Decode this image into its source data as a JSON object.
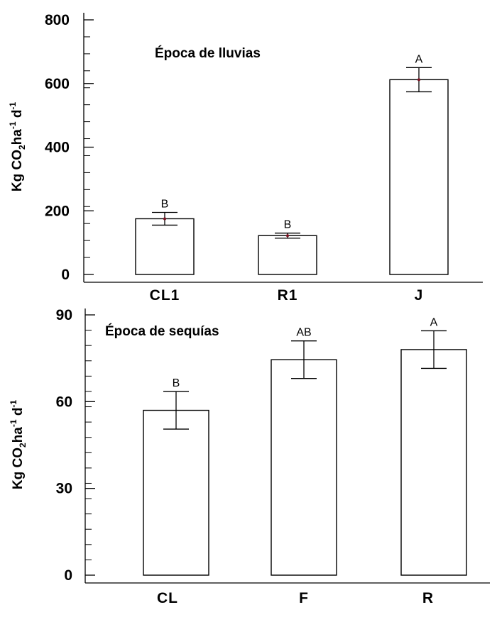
{
  "chart_data": [
    {
      "type": "bar",
      "title": "Época de lluvias",
      "ylabel_parts": [
        "Kg CO",
        "2",
        "ha",
        "-1",
        " d",
        "-1"
      ],
      "categories": [
        "CL1",
        "R1",
        "J"
      ],
      "values": [
        175,
        122,
        612
      ],
      "errors": [
        20,
        8,
        38
      ],
      "letters": [
        "B",
        "B",
        "A"
      ],
      "yticks": [
        "0",
        "200",
        "400",
        "600",
        "800"
      ],
      "ytick_values": [
        0,
        200,
        400,
        600,
        800
      ],
      "ylim": [
        0,
        800
      ]
    },
    {
      "type": "bar",
      "title": "Época de sequías",
      "ylabel_parts": [
        "Kg CO",
        "2",
        "ha",
        "-1",
        " d",
        "-1"
      ],
      "categories": [
        "CL",
        "F",
        "R"
      ],
      "values": [
        57,
        74.5,
        78
      ],
      "errors": [
        6.5,
        6.5,
        6.5
      ],
      "letters": [
        "B",
        "AB",
        "A"
      ],
      "yticks": [
        "0",
        "30",
        "60",
        "90"
      ],
      "ytick_values": [
        0,
        30,
        60,
        90
      ],
      "ylim": [
        0,
        90
      ]
    }
  ]
}
